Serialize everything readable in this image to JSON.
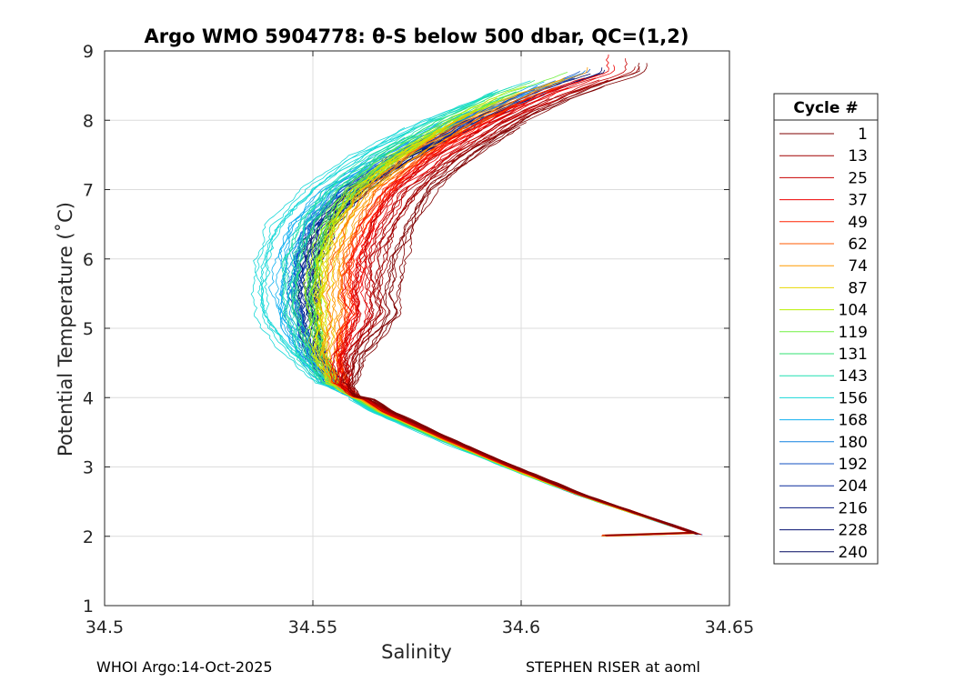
{
  "chart_data": {
    "type": "line",
    "title": "Argo WMO 5904778: θ-S below 500 dbar,  QC=(1,2)",
    "xlabel": "Salinity",
    "ylabel": "Potential Temperature (˚C)",
    "xlim": [
      34.5,
      34.65
    ],
    "ylim": [
      1,
      9
    ],
    "xticks": [
      34.5,
      34.55,
      34.6,
      34.65
    ],
    "xtick_labels": [
      "34.5",
      "34.55",
      "34.6",
      "34.65"
    ],
    "yticks": [
      1,
      2,
      3,
      4,
      5,
      6,
      7,
      8,
      9
    ],
    "ytick_labels": [
      "1",
      "2",
      "3",
      "4",
      "5",
      "6",
      "7",
      "8",
      "9"
    ],
    "grid": true,
    "legend_title": "Cycle #",
    "legend_position": "outside-right",
    "series": [
      {
        "name": "1",
        "color": "#7f0000",
        "s_shift": 0.02,
        "upper_shift": 0.009
      },
      {
        "name": "13",
        "color": "#a10000",
        "s_shift": 0.016,
        "upper_shift": 0.007
      },
      {
        "name": "25",
        "color": "#c80000",
        "s_shift": 0.013,
        "upper_shift": 0.004
      },
      {
        "name": "37",
        "color": "#ee0000",
        "s_shift": 0.011,
        "upper_shift": 0.001
      },
      {
        "name": "49",
        "color": "#ff2200",
        "s_shift": 0.009,
        "upper_shift": -0.001
      },
      {
        "name": "62",
        "color": "#ff5a00",
        "s_shift": 0.007,
        "upper_shift": -0.003
      },
      {
        "name": "74",
        "color": "#ff9a00",
        "s_shift": 0.005,
        "upper_shift": -0.005
      },
      {
        "name": "87",
        "color": "#e8d800",
        "s_shift": 0.0035,
        "upper_shift": -0.006
      },
      {
        "name": "104",
        "color": "#b8f000",
        "s_shift": 0.002,
        "upper_shift": -0.007
      },
      {
        "name": "119",
        "color": "#70f040",
        "s_shift": 0.0005,
        "upper_shift": -0.008
      },
      {
        "name": "131",
        "color": "#30e070",
        "s_shift": -0.001,
        "upper_shift": -0.009
      },
      {
        "name": "143",
        "color": "#20e0b0",
        "s_shift": -0.004,
        "upper_shift": -0.01
      },
      {
        "name": "156",
        "color": "#18d8d8",
        "s_shift": -0.012,
        "upper_shift": -0.013
      },
      {
        "name": "168",
        "color": "#10b0f0",
        "s_shift": -0.007,
        "upper_shift": -0.008
      },
      {
        "name": "180",
        "color": "#1080e0",
        "s_shift": -0.004,
        "upper_shift": -0.005
      },
      {
        "name": "192",
        "color": "#1050c0",
        "s_shift": -0.003,
        "upper_shift": -0.004
      },
      {
        "name": "204",
        "color": "#0a2a9c",
        "s_shift": -0.002,
        "upper_shift": -0.003
      },
      {
        "name": "216",
        "color": "#061a80",
        "s_shift": -0.001,
        "upper_shift": -0.002
      },
      {
        "name": "228",
        "color": "#041070",
        "s_shift": -0.0005,
        "upper_shift": -0.0015
      },
      {
        "name": "240",
        "color": "#020860",
        "s_shift": 0.0,
        "upper_shift": -0.001
      }
    ],
    "base_profile": {
      "theta": [
        2.02,
        2.3,
        2.6,
        3.0,
        3.4,
        3.8,
        4.2,
        4.6,
        5.0,
        5.5,
        6.0,
        6.5,
        7.0,
        7.5,
        8.0,
        8.4,
        8.7
      ],
      "salinity": [
        34.643,
        34.629,
        34.614,
        34.597,
        34.581,
        34.566,
        34.555,
        34.551,
        34.55,
        34.549,
        34.55,
        34.553,
        34.561,
        34.574,
        34.59,
        34.606,
        34.62
      ]
    }
  },
  "footer": {
    "left": "WHOI Argo:14-Oct-2025",
    "right": "STEPHEN RISER at aoml"
  }
}
